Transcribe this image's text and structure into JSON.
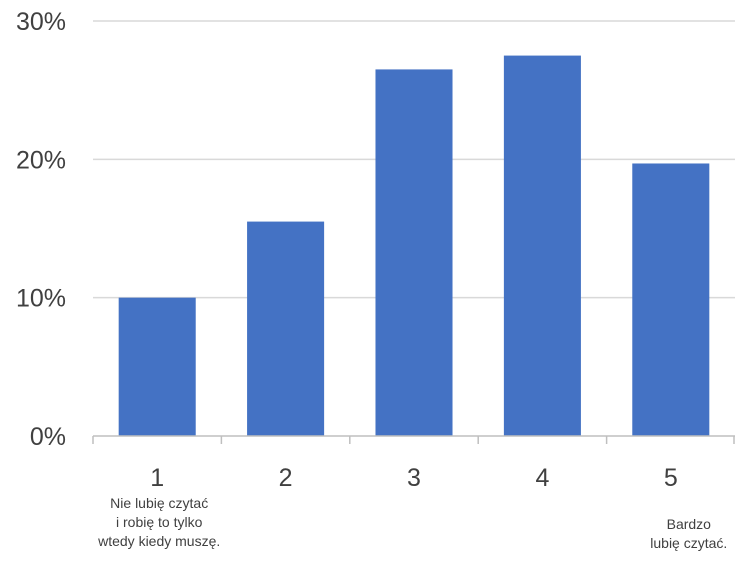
{
  "chart_data": {
    "type": "bar",
    "categories": [
      "1",
      "2",
      "3",
      "4",
      "5"
    ],
    "values": [
      10.0,
      15.5,
      26.5,
      27.5,
      19.7
    ],
    "ylim": [
      0,
      30
    ],
    "yticks": [
      0,
      10,
      20,
      30
    ],
    "ytick_labels": [
      "0%",
      "10%",
      "20%",
      "30%"
    ],
    "grid": true,
    "legend": "none",
    "bar_color": "#4472C4",
    "gridline_color": "#D9D9D9",
    "axis_color": "#BFBFBF",
    "text_color": "#404040",
    "annotations": {
      "first": [
        "Nie lubię czytać",
        "i robię to tylko",
        "wtedy kiedy muszę."
      ],
      "last": [
        "Bardzo",
        "lubię czytać."
      ]
    }
  }
}
